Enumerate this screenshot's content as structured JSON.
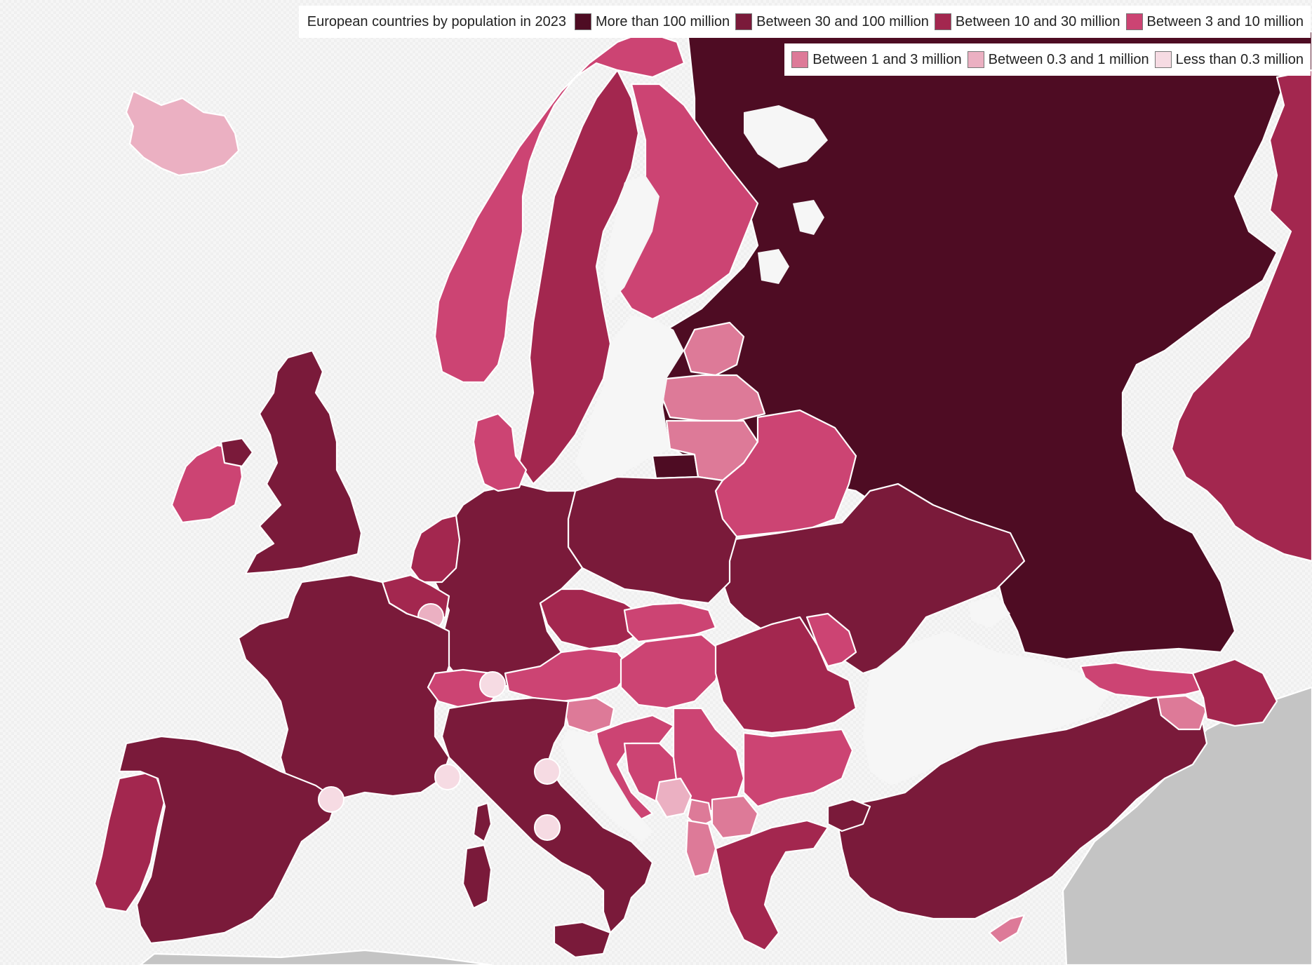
{
  "legend": {
    "title": "European countries by population in 2023",
    "items": [
      {
        "label": "More than 100 million",
        "color": "#4e0c23"
      },
      {
        "label": "Between 30 and 100 million",
        "color": "#7a1a3a"
      },
      {
        "label": "Between 10 and 30 million",
        "color": "#a3274f"
      },
      {
        "label": "Between 3 and 10 million",
        "color": "#cc4473"
      },
      {
        "label": "Between 1 and 3 million",
        "color": "#dd7a98"
      },
      {
        "label": "Between 0.3 and 1 million",
        "color": "#ebb0c2"
      },
      {
        "label": "Less than 0.3 million",
        "color": "#f6dbe3"
      }
    ]
  },
  "colors": {
    "non_european": "#c4c4c4",
    "border": "#ffffff",
    "background": "#f6f6f6"
  }
}
